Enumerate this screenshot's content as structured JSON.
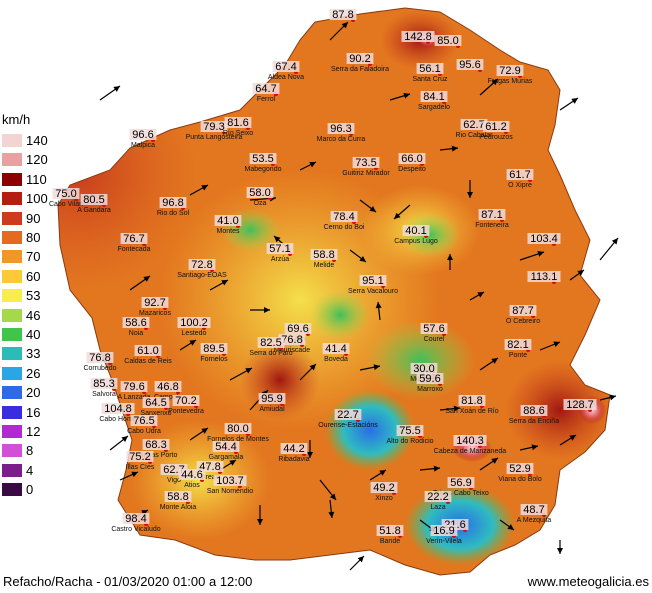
{
  "legend": {
    "unit": "km/h",
    "bins": [
      {
        "label": "140",
        "color": "#f4d3d3"
      },
      {
        "label": "120",
        "color": "#e8a0a0"
      },
      {
        "label": "110",
        "color": "#8c0000"
      },
      {
        "label": "100",
        "color": "#b51e12"
      },
      {
        "label": "90",
        "color": "#cd3a1e"
      },
      {
        "label": "80",
        "color": "#e36a1e"
      },
      {
        "label": "70",
        "color": "#f3962a"
      },
      {
        "label": "60",
        "color": "#fbc93a"
      },
      {
        "label": "53",
        "color": "#f7ee4e"
      },
      {
        "label": "46",
        "color": "#a6d84c"
      },
      {
        "label": "40",
        "color": "#41c44c"
      },
      {
        "label": "33",
        "color": "#2bbcb8"
      },
      {
        "label": "26",
        "color": "#2aa6e6"
      },
      {
        "label": "20",
        "color": "#2f6ae6"
      },
      {
        "label": "16",
        "color": "#3a2de0"
      },
      {
        "label": "12",
        "color": "#b02ad4"
      },
      {
        "label": "8",
        "color": "#d24fd8"
      },
      {
        "label": "4",
        "color": "#7a1e8c"
      },
      {
        "label": "0",
        "color": "#3a0a44"
      }
    ]
  },
  "stations": [
    {
      "value": "87.8",
      "name": ""
    },
    {
      "value": "142.8",
      "name": ""
    },
    {
      "value": "85.0",
      "name": ""
    },
    {
      "value": "90.2",
      "name": "Serra da Faladoira"
    },
    {
      "value": "67.4",
      "name": "Aldea Nova"
    },
    {
      "value": "56.1",
      "name": "Santa Cruz"
    },
    {
      "value": "95.6",
      "name": ""
    },
    {
      "value": "72.9",
      "name": "Fragas Murias"
    },
    {
      "value": "64.7",
      "name": "Ferrol"
    },
    {
      "value": "84.1",
      "name": "Sargadelo"
    },
    {
      "value": "96.6",
      "name": "Malpica"
    },
    {
      "value": "79.3",
      "name": "Punta Langosteira"
    },
    {
      "value": "81.6",
      "name": "Río Seixo"
    },
    {
      "value": "96.3",
      "name": "Marco da Curra"
    },
    {
      "value": "62.7",
      "name": "Rio Cabalar"
    },
    {
      "value": "61.2",
      "name": "Pedrouzos"
    },
    {
      "value": "53.5",
      "name": "Mabegondo"
    },
    {
      "value": "73.5",
      "name": "Guitiriz Mirador"
    },
    {
      "value": "66.0",
      "name": "Despeito"
    },
    {
      "value": "61.7",
      "name": "O Xipre"
    },
    {
      "value": "75.0",
      "name": "Cabo Vilán"
    },
    {
      "value": "80.5",
      "name": "A Gandara"
    },
    {
      "value": "96.8",
      "name": "Rio do Sol"
    },
    {
      "value": "58.0",
      "name": "Oza"
    },
    {
      "value": "41.0",
      "name": "Montes"
    },
    {
      "value": "78.4",
      "name": "Cerno do Boi"
    },
    {
      "value": "40.1",
      "name": "Campus Lugo"
    },
    {
      "value": "87.1",
      "name": "Fonteneira"
    },
    {
      "value": "76.7",
      "name": "Fontecada"
    },
    {
      "value": "57.1",
      "name": "Arzúa"
    },
    {
      "value": "58.8",
      "name": "Melide"
    },
    {
      "value": "103.4",
      "name": ""
    },
    {
      "value": "72.8",
      "name": "Santiago-EOAS"
    },
    {
      "value": "95.1",
      "name": "Serra Vacalouro"
    },
    {
      "value": "113.1",
      "name": ""
    },
    {
      "value": "92.7",
      "name": "Mazaricos"
    },
    {
      "value": "87.7",
      "name": "O Cebreiro"
    },
    {
      "value": "58.6",
      "name": "Noia"
    },
    {
      "value": "100.2",
      "name": "Lestedo"
    },
    {
      "value": "69.6",
      "name": "Lalín"
    },
    {
      "value": "76.8",
      "name": "Mouriscade"
    },
    {
      "value": "41.4",
      "name": "Boveda"
    },
    {
      "value": "57.6",
      "name": "Courel"
    },
    {
      "value": "82.1",
      "name": "Ponte"
    },
    {
      "value": "61.0",
      "name": "Caldas de Reis"
    },
    {
      "value": "89.5",
      "name": "Fornelos"
    },
    {
      "value": "82.5",
      "name": "Serra do Faro"
    },
    {
      "value": "76.8",
      "name": "Corrubedo"
    },
    {
      "value": "30.0",
      "name": "Monforte"
    },
    {
      "value": "59.6",
      "name": "Marroxo"
    },
    {
      "value": "85.3",
      "name": "Salvora"
    },
    {
      "value": "79.6",
      "name": "A Lanzada"
    },
    {
      "value": "46.8",
      "name": "Campelo"
    },
    {
      "value": "64.5",
      "name": "Sanxenxo"
    },
    {
      "value": "70.2",
      "name": "Pontevedra"
    },
    {
      "value": "104.8",
      "name": "Cabo Home"
    },
    {
      "value": "95.9",
      "name": "Amiudal"
    },
    {
      "value": "81.8",
      "name": "San Xoán de Río"
    },
    {
      "value": "88.6",
      "name": "Serra da Enciña"
    },
    {
      "value": "128.7",
      "name": ""
    },
    {
      "value": "76.5",
      "name": "Cabo Udra"
    },
    {
      "value": "80.0",
      "name": "Fornelos de Montes"
    },
    {
      "value": "22.7",
      "name": "Ourense-Estacións"
    },
    {
      "value": "75.5",
      "name": "Alto do Rodicio"
    },
    {
      "value": "68.3",
      "name": "Cangas Porto"
    },
    {
      "value": "54.4",
      "name": "Gargamala"
    },
    {
      "value": "44.2",
      "name": "Ribadavia"
    },
    {
      "value": "140.3",
      "name": "Cabeza de Manzaneda"
    },
    {
      "value": "75.2",
      "name": "Illas Cíes"
    },
    {
      "value": "62.7",
      "name": "Vigo"
    },
    {
      "value": "47.8",
      "name": "Areas"
    },
    {
      "value": "44.6",
      "name": "Atios"
    },
    {
      "value": "103.7",
      "name": "San Noméndio"
    },
    {
      "value": "52.9",
      "name": "Viana do Bolo"
    },
    {
      "value": "49.2",
      "name": "Xinzo"
    },
    {
      "value": "56.9",
      "name": "Trives Cabo Teixo"
    },
    {
      "value": "22.2",
      "name": "Laza"
    },
    {
      "value": "58.8",
      "name": "Monte Aloia"
    },
    {
      "value": "48.7",
      "name": "A Mezquita"
    },
    {
      "value": "21.6",
      "name": ""
    },
    {
      "value": "98.4",
      "name": "Castro Vicaludo"
    },
    {
      "value": "16.9",
      "name": "Verín-Vilela"
    },
    {
      "value": "51.8",
      "name": "Bande"
    }
  ],
  "footer": {
    "left": "Refacho/Racha - 01/03/2020 01:00 a 12:00",
    "right": "www.meteogalicia.es"
  }
}
